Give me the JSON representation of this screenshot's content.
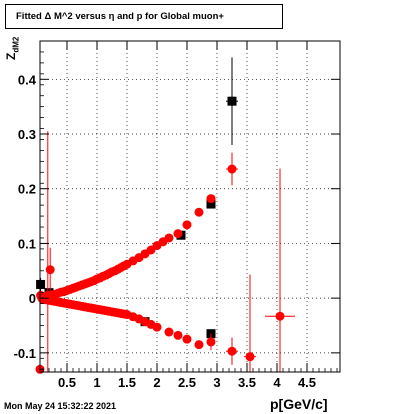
{
  "title": "Fitted Δ M^2 versus η and p for Global muon+",
  "timestamp": "Mon May 24 15:32:22 2021",
  "chart_data": {
    "type": "scatter",
    "title": "Fitted Δ M^2 versus η and p for Global muon+",
    "xlabel": "p[GeV/c]",
    "ylabel": "Z",
    "ylabel_sub": "dM2",
    "xlim": [
      0.05,
      5.05
    ],
    "ylim": [
      -0.135,
      0.47
    ],
    "grid": true,
    "x_ticks": [
      "0.5",
      "1",
      "1.5",
      "2",
      "2.5",
      "3",
      "3.5",
      "4",
      "4.5"
    ],
    "x_tick_values": [
      0.5,
      1,
      1.5,
      2,
      2.5,
      3,
      3.5,
      4,
      4.5
    ],
    "y_ticks": [
      "-0.1",
      "0",
      "0.1",
      "0.2",
      "0.3",
      "0.4"
    ],
    "y_tick_values": [
      -0.1,
      0,
      0.1,
      0.2,
      0.3,
      0.4
    ],
    "series": [
      {
        "color": "#000000",
        "marker": "square",
        "points": [
          {
            "x": 0.06,
            "y": 0.025,
            "ey": 0.012
          },
          {
            "x": 0.2,
            "y": 0.01
          },
          {
            "x": 1.8,
            "y": -0.043
          },
          {
            "x": 2.4,
            "y": 0.115
          },
          {
            "x": 2.9,
            "y": 0.172
          },
          {
            "x": 2.9,
            "y": -0.065
          },
          {
            "x": 3.25,
            "y": 0.36,
            "ey": 0.08,
            "ex": 0.1
          }
        ]
      },
      {
        "color": "#ff0000",
        "marker": "circle",
        "points": [
          {
            "x": 0.05,
            "y": -0.13
          },
          {
            "x": 0.06,
            "y": 0.005
          },
          {
            "x": 0.08,
            "y": 0.0
          },
          {
            "x": 0.1,
            "y": 0.0
          },
          {
            "x": 0.12,
            "y": 0.002
          },
          {
            "x": 0.15,
            "y": 0.003
          },
          {
            "x": 0.18,
            "y": 0.005,
            "ey": 0.3
          },
          {
            "x": 0.2,
            "y": 0.004
          },
          {
            "x": 0.22,
            "y": 0.052,
            "ey": 0.04
          },
          {
            "x": 0.25,
            "y": 0.006
          },
          {
            "x": 0.3,
            "y": 0.007
          },
          {
            "x": 0.35,
            "y": 0.009
          },
          {
            "x": 0.4,
            "y": 0.011
          },
          {
            "x": 0.45,
            "y": 0.012
          },
          {
            "x": 0.5,
            "y": 0.014
          },
          {
            "x": 0.55,
            "y": 0.016
          },
          {
            "x": 0.6,
            "y": 0.018
          },
          {
            "x": 0.65,
            "y": 0.02
          },
          {
            "x": 0.7,
            "y": 0.022
          },
          {
            "x": 0.75,
            "y": 0.024
          },
          {
            "x": 0.8,
            "y": 0.026
          },
          {
            "x": 0.85,
            "y": 0.028
          },
          {
            "x": 0.9,
            "y": 0.03
          },
          {
            "x": 0.95,
            "y": 0.032
          },
          {
            "x": 1.0,
            "y": 0.035
          },
          {
            "x": 1.05,
            "y": 0.037
          },
          {
            "x": 1.1,
            "y": 0.04
          },
          {
            "x": 1.15,
            "y": 0.042
          },
          {
            "x": 1.2,
            "y": 0.045
          },
          {
            "x": 1.25,
            "y": 0.048
          },
          {
            "x": 1.3,
            "y": 0.05
          },
          {
            "x": 1.35,
            "y": 0.053
          },
          {
            "x": 1.4,
            "y": 0.056
          },
          {
            "x": 1.45,
            "y": 0.059
          },
          {
            "x": 1.5,
            "y": 0.062
          },
          {
            "x": 1.6,
            "y": 0.068
          },
          {
            "x": 1.7,
            "y": 0.074
          },
          {
            "x": 1.8,
            "y": 0.081
          },
          {
            "x": 1.9,
            "y": 0.088
          },
          {
            "x": 2.0,
            "y": 0.096
          },
          {
            "x": 2.1,
            "y": 0.103
          },
          {
            "x": 2.2,
            "y": 0.11
          },
          {
            "x": 2.35,
            "y": 0.118
          },
          {
            "x": 2.5,
            "y": 0.134
          },
          {
            "x": 2.7,
            "y": 0.157
          },
          {
            "x": 2.9,
            "y": 0.182
          },
          {
            "x": 3.25,
            "y": 0.236,
            "ey": 0.03,
            "ex": 0.1
          },
          {
            "x": 0.1,
            "y": -0.002
          },
          {
            "x": 0.15,
            "y": -0.003
          },
          {
            "x": 0.2,
            "y": -0.004
          },
          {
            "x": 0.25,
            "y": -0.005
          },
          {
            "x": 0.3,
            "y": -0.006
          },
          {
            "x": 0.35,
            "y": -0.007
          },
          {
            "x": 0.4,
            "y": -0.008
          },
          {
            "x": 0.45,
            "y": -0.009
          },
          {
            "x": 0.5,
            "y": -0.01
          },
          {
            "x": 0.55,
            "y": -0.011
          },
          {
            "x": 0.6,
            "y": -0.012
          },
          {
            "x": 0.65,
            "y": -0.013
          },
          {
            "x": 0.7,
            "y": -0.014
          },
          {
            "x": 0.75,
            "y": -0.015
          },
          {
            "x": 0.8,
            "y": -0.016
          },
          {
            "x": 0.85,
            "y": -0.017
          },
          {
            "x": 0.9,
            "y": -0.018
          },
          {
            "x": 0.95,
            "y": -0.019
          },
          {
            "x": 1.0,
            "y": -0.02
          },
          {
            "x": 1.05,
            "y": -0.021
          },
          {
            "x": 1.1,
            "y": -0.022
          },
          {
            "x": 1.15,
            "y": -0.023
          },
          {
            "x": 1.2,
            "y": -0.024
          },
          {
            "x": 1.25,
            "y": -0.025
          },
          {
            "x": 1.3,
            "y": -0.026
          },
          {
            "x": 1.35,
            "y": -0.027
          },
          {
            "x": 1.4,
            "y": -0.028
          },
          {
            "x": 1.45,
            "y": -0.029
          },
          {
            "x": 1.5,
            "y": -0.03
          },
          {
            "x": 1.6,
            "y": -0.034
          },
          {
            "x": 1.7,
            "y": -0.038
          },
          {
            "x": 1.8,
            "y": -0.043
          },
          {
            "x": 1.9,
            "y": -0.048
          },
          {
            "x": 2.0,
            "y": -0.053
          },
          {
            "x": 2.2,
            "y": -0.062
          },
          {
            "x": 2.35,
            "y": -0.068
          },
          {
            "x": 2.5,
            "y": -0.075
          },
          {
            "x": 2.7,
            "y": -0.085
          },
          {
            "x": 2.9,
            "y": -0.08,
            "ey": 0.015
          },
          {
            "x": 3.25,
            "y": -0.097,
            "ey": 0.025,
            "ex": 0.1
          },
          {
            "x": 3.55,
            "y": -0.107,
            "ey": 0.15,
            "ex": 0.1
          },
          {
            "x": 4.05,
            "y": -0.033,
            "ey": 0.27,
            "ex": 0.25
          }
        ]
      }
    ]
  }
}
